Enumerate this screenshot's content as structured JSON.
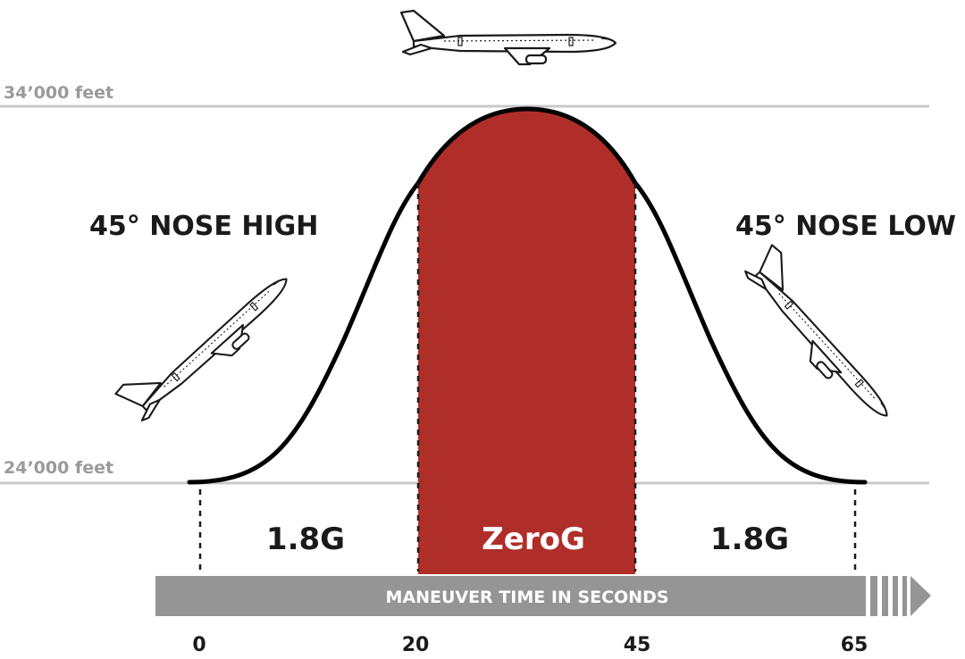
{
  "diagram": {
    "altitude_top": "34’000 feet",
    "altitude_bottom": "24’000 feet",
    "left_phase": "45° NOSE HIGH",
    "right_phase": "45° NOSE LOW",
    "segments": [
      {
        "label": "1.8G"
      },
      {
        "label": "ZeroG"
      },
      {
        "label": "1.8G"
      }
    ],
    "time_axis_title": "MANEUVER TIME IN SECONDS",
    "time_ticks": [
      "0",
      "20",
      "45",
      "65"
    ],
    "colors": {
      "zero_g": "#b02e29",
      "time_bar": "#959595",
      "altitude_line": "#c8c8c8",
      "curve": "#000000"
    },
    "icons": [
      "airplane-level-icon",
      "airplane-climb-icon",
      "airplane-dive-icon"
    ]
  }
}
